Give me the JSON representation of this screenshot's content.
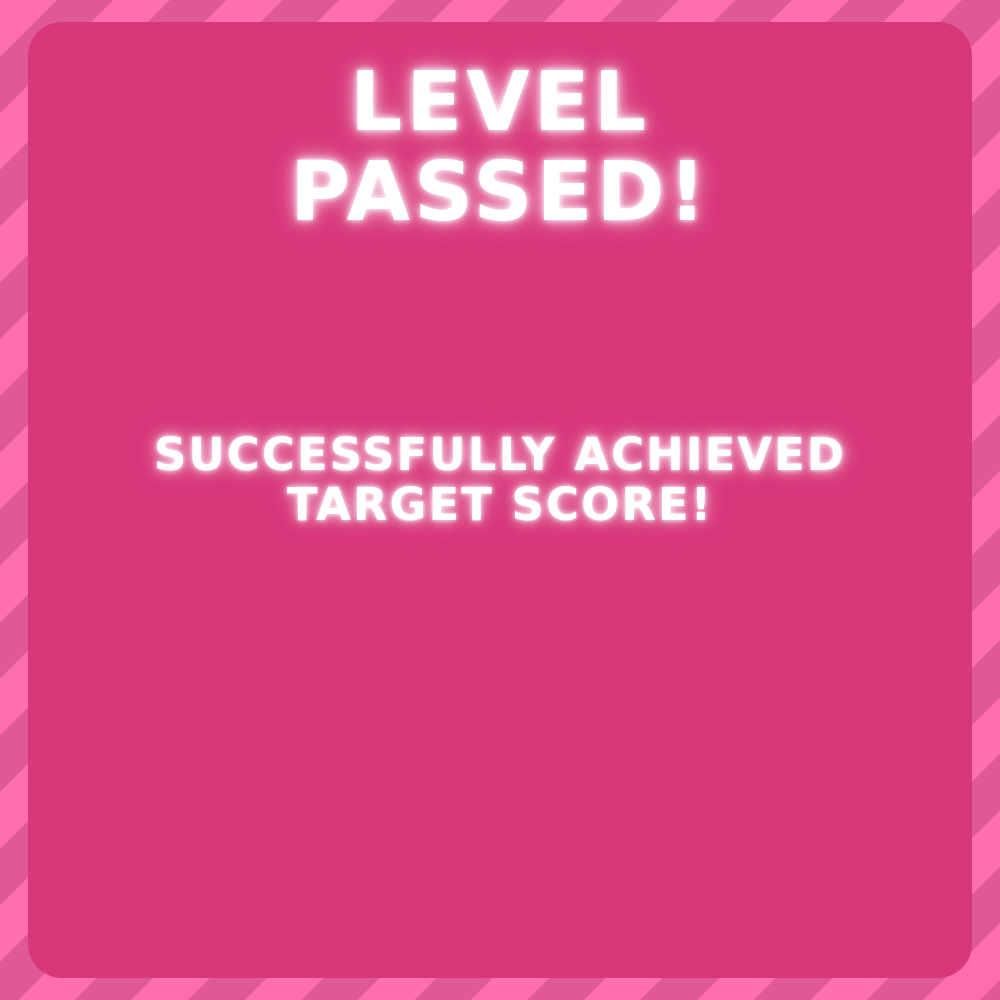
{
  "screen": {
    "title_line1": "LEVEL",
    "title_line2": "PASSED!",
    "message_line1": "SUCCESSFULLY ACHIEVED",
    "message_line2": "TARGET SCORE!"
  },
  "colors": {
    "stripe_light": "#ff6eaf",
    "stripe_dark": "#df5a95",
    "panel": "#d8377a",
    "text": "#ffffff"
  }
}
